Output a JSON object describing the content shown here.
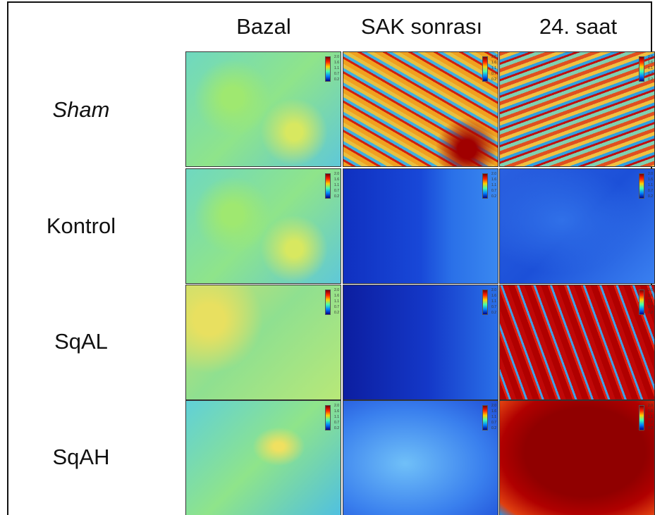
{
  "columns": [
    "Bazal",
    "SAK sonrası",
    "24. saat"
  ],
  "rows": [
    "Sham",
    "Kontrol",
    "SqAL",
    "SqAH"
  ],
  "colorbar_labels": [
    "2.0",
    "1.6",
    "1.1",
    "0.7",
    "0.2"
  ]
}
